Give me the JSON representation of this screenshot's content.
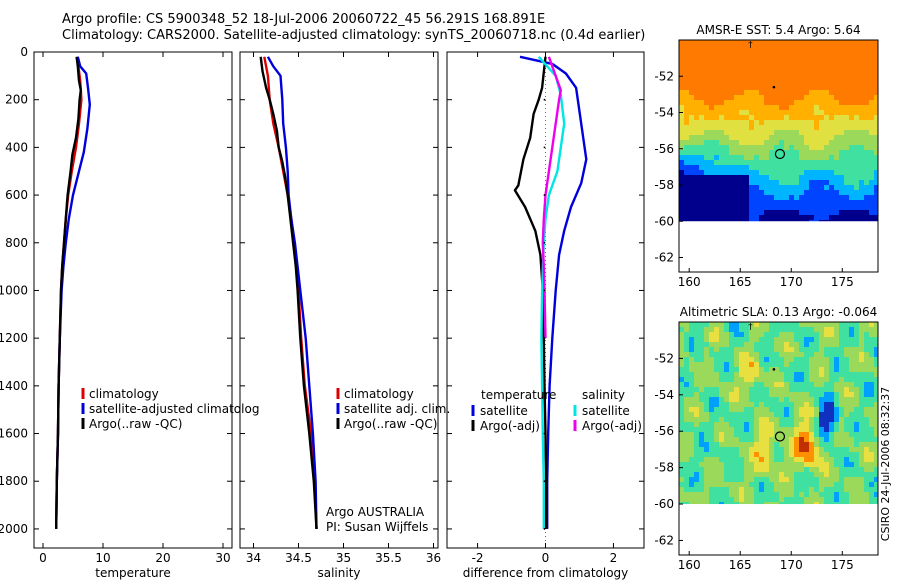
{
  "header": {
    "line1": "Argo profile: CS 5900348_52 18-Jul-2006 20060722_45 56.291S 168.891E",
    "line2": "Climatology: CARS2000. Satellite-adjusted climatology: synTS_20060718.nc (0.4d earlier)"
  },
  "stamp": "CSIRO 24-Jul-2006 08:32:37",
  "colors": {
    "clim": "#dd0000",
    "sat": "#0000dd",
    "argo": "#000000",
    "cyan": "#00e5e5",
    "magenta": "#ee00ee"
  },
  "chart_data": [
    {
      "type": "line",
      "name": "temperature-profile",
      "xlabel": "temperature",
      "xlim": [
        -1.5,
        31.5
      ],
      "ylim": [
        0,
        2080
      ],
      "xticks": [
        "0",
        "10",
        "20",
        "30"
      ],
      "yticks": [
        "0",
        "200",
        "400",
        "600",
        "800",
        "1000",
        "1200",
        "1400",
        "1600",
        "1800",
        "2000"
      ],
      "legend": [
        "climatology",
        "satellite-adjusted climatolog",
        "Argo(..raw -QC)"
      ],
      "series": [
        {
          "key": "clim",
          "points": [
            [
              5.7,
              20
            ],
            [
              5.9,
              60
            ],
            [
              6.2,
              120
            ],
            [
              6.4,
              200
            ],
            [
              6.0,
              300
            ],
            [
              5.5,
              400
            ],
            [
              4.8,
              500
            ],
            [
              4.2,
              600
            ],
            [
              3.8,
              700
            ],
            [
              3.5,
              800
            ],
            [
              3.2,
              900
            ],
            [
              3.0,
              1000
            ],
            [
              2.8,
              1200
            ],
            [
              2.6,
              1400
            ],
            [
              2.5,
              1600
            ],
            [
              2.3,
              1800
            ],
            [
              2.2,
              2000
            ]
          ]
        },
        {
          "key": "sat",
          "points": [
            [
              5.8,
              20
            ],
            [
              6.2,
              60
            ],
            [
              7.2,
              90
            ],
            [
              7.5,
              150
            ],
            [
              7.8,
              220
            ],
            [
              7.4,
              320
            ],
            [
              6.8,
              420
            ],
            [
              6.0,
              500
            ],
            [
              5.0,
              600
            ],
            [
              4.3,
              700
            ],
            [
              3.8,
              800
            ],
            [
              3.4,
              900
            ],
            [
              3.1,
              1000
            ],
            [
              2.8,
              1200
            ],
            [
              2.6,
              1400
            ],
            [
              2.5,
              1600
            ],
            [
              2.3,
              1800
            ],
            [
              2.2,
              2000
            ]
          ]
        },
        {
          "key": "argo",
          "points": [
            [
              5.6,
              20
            ],
            [
              5.8,
              60
            ],
            [
              6.0,
              120
            ],
            [
              6.3,
              160
            ],
            [
              6.1,
              200
            ],
            [
              5.9,
              280
            ],
            [
              5.5,
              360
            ],
            [
              4.9,
              430
            ],
            [
              4.6,
              500
            ],
            [
              4.1,
              600
            ],
            [
              3.8,
              700
            ],
            [
              3.5,
              800
            ],
            [
              3.2,
              900
            ],
            [
              3.0,
              1000
            ],
            [
              2.8,
              1200
            ],
            [
              2.6,
              1400
            ],
            [
              2.5,
              1600
            ],
            [
              2.3,
              1800
            ],
            [
              2.2,
              2000
            ]
          ]
        }
      ]
    },
    {
      "type": "line",
      "name": "salinity-profile",
      "xlabel": "salinity",
      "xlim": [
        33.85,
        36.05
      ],
      "ylim": [
        0,
        2080
      ],
      "xticks": [
        "34",
        "34.5",
        "35",
        "35.5",
        "36"
      ],
      "legend": [
        "climatology",
        "satellite adj. clim.",
        "Argo(..raw -QC)"
      ],
      "annotations": [
        "Argo AUSTRALIA",
        "PI: Susan Wijffels"
      ],
      "series": [
        {
          "key": "clim",
          "points": [
            [
              34.12,
              20
            ],
            [
              34.16,
              100
            ],
            [
              34.18,
              200
            ],
            [
              34.22,
              300
            ],
            [
              34.28,
              400
            ],
            [
              34.33,
              500
            ],
            [
              34.38,
              600
            ],
            [
              34.42,
              700
            ],
            [
              34.45,
              800
            ],
            [
              34.48,
              900
            ],
            [
              34.5,
              1000
            ],
            [
              34.53,
              1200
            ],
            [
              34.57,
              1400
            ],
            [
              34.64,
              1600
            ],
            [
              34.68,
              1800
            ],
            [
              34.7,
              2000
            ]
          ]
        },
        {
          "key": "sat",
          "points": [
            [
              34.16,
              20
            ],
            [
              34.22,
              60
            ],
            [
              34.3,
              100
            ],
            [
              34.32,
              200
            ],
            [
              34.33,
              300
            ],
            [
              34.36,
              400
            ],
            [
              34.38,
              500
            ],
            [
              34.39,
              600
            ],
            [
              34.42,
              700
            ],
            [
              34.46,
              800
            ],
            [
              34.49,
              900
            ],
            [
              34.52,
              1000
            ],
            [
              34.58,
              1200
            ],
            [
              34.62,
              1400
            ],
            [
              34.66,
              1600
            ],
            [
              34.69,
              1800
            ],
            [
              34.7,
              2000
            ]
          ]
        },
        {
          "key": "argo",
          "points": [
            [
              34.08,
              20
            ],
            [
              34.1,
              80
            ],
            [
              34.14,
              150
            ],
            [
              34.18,
              200
            ],
            [
              34.22,
              260
            ],
            [
              34.26,
              330
            ],
            [
              34.28,
              400
            ],
            [
              34.32,
              460
            ],
            [
              34.35,
              520
            ],
            [
              34.38,
              600
            ],
            [
              34.41,
              700
            ],
            [
              34.44,
              800
            ],
            [
              34.47,
              900
            ],
            [
              34.49,
              1000
            ],
            [
              34.52,
              1200
            ],
            [
              34.56,
              1400
            ],
            [
              34.62,
              1600
            ],
            [
              34.67,
              1800
            ],
            [
              34.7,
              2000
            ]
          ]
        }
      ]
    },
    {
      "type": "line",
      "name": "difference-profile",
      "xlabel": "difference from climatology",
      "xlim": [
        -2.9,
        2.9
      ],
      "ylim": [
        0,
        2080
      ],
      "xticks": [
        "-2",
        "0",
        "2"
      ],
      "legend_left_title": "temperature",
      "legend_right_title": "salinity",
      "legend_left": [
        "satellite",
        "Argo(-adj)"
      ],
      "legend_right": [
        "satellite",
        "Argo(-adj)"
      ],
      "series": [
        {
          "key": "sat",
          "points": [
            [
              -0.75,
              20
            ],
            [
              0.2,
              50
            ],
            [
              0.6,
              90
            ],
            [
              0.9,
              150
            ],
            [
              1.0,
              250
            ],
            [
              1.1,
              350
            ],
            [
              1.2,
              450
            ],
            [
              1.05,
              550
            ],
            [
              0.75,
              650
            ],
            [
              0.55,
              750
            ],
            [
              0.4,
              850
            ],
            [
              0.3,
              1000
            ],
            [
              0.2,
              1200
            ],
            [
              0.12,
              1400
            ],
            [
              0.08,
              1600
            ],
            [
              0.05,
              1800
            ],
            [
              0.05,
              2000
            ]
          ]
        },
        {
          "key": "argo",
          "points": [
            [
              0.0,
              20
            ],
            [
              -0.1,
              150
            ],
            [
              -0.2,
              200
            ],
            [
              -0.35,
              260
            ],
            [
              -0.45,
              360
            ],
            [
              -0.65,
              450
            ],
            [
              -0.8,
              560
            ],
            [
              -0.9,
              580
            ],
            [
              -0.6,
              650
            ],
            [
              -0.3,
              750
            ],
            [
              -0.15,
              850
            ],
            [
              -0.08,
              1000
            ],
            [
              -0.05,
              1200
            ],
            [
              -0.03,
              1400
            ],
            [
              0.0,
              1600
            ],
            [
              0.02,
              1800
            ],
            [
              0.02,
              2000
            ]
          ]
        },
        {
          "key": "cyan",
          "points": [
            [
              -0.2,
              20
            ],
            [
              0.3,
              100
            ],
            [
              0.45,
              180
            ],
            [
              0.55,
              300
            ],
            [
              0.45,
              400
            ],
            [
              0.35,
              500
            ],
            [
              0.1,
              600
            ],
            [
              0.0,
              700
            ],
            [
              -0.05,
              800
            ],
            [
              -0.1,
              1000
            ],
            [
              -0.12,
              1200
            ],
            [
              -0.1,
              1400
            ],
            [
              -0.08,
              1600
            ],
            [
              -0.05,
              1800
            ],
            [
              -0.05,
              2000
            ]
          ]
        },
        {
          "key": "magenta",
          "points": [
            [
              0.1,
              20
            ],
            [
              0.25,
              80
            ],
            [
              0.45,
              160
            ],
            [
              0.4,
              200
            ],
            [
              0.3,
              300
            ],
            [
              0.2,
              400
            ],
            [
              0.1,
              500
            ],
            [
              0.0,
              600
            ],
            [
              -0.05,
              700
            ],
            [
              -0.08,
              800
            ],
            [
              -0.05,
              900
            ],
            [
              -0.03,
              1000
            ],
            [
              0.0,
              1200
            ]
          ]
        },
        {
          "key": "dots",
          "points": [
            [
              -0.03,
              200
            ],
            [
              -0.03,
              400
            ],
            [
              -0.03,
              600
            ],
            [
              -0.03,
              800
            ],
            [
              -0.03,
              1000
            ],
            [
              -0.03,
              1200
            ],
            [
              -0.03,
              1400
            ],
            [
              -0.03,
              1600
            ],
            [
              -0.03,
              1800
            ],
            [
              -0.03,
              2000
            ]
          ]
        }
      ]
    },
    {
      "type": "heatmap",
      "name": "sst-map",
      "title": "AMSR-E SST: 5.4 Argo: 5.64",
      "xlim": [
        159,
        178.5
      ],
      "ylim": [
        -62.8,
        -50
      ],
      "xticks": [
        "160",
        "165",
        "170",
        "175"
      ],
      "yticks": [
        "-52",
        "-54",
        "-56",
        "-58",
        "-60",
        "-62"
      ],
      "data_bottom": -60,
      "marker": [
        168.891,
        -56.291
      ],
      "palette": [
        "#00008c",
        "#0044ff",
        "#00b4ff",
        "#40e0a0",
        "#9ad95a",
        "#e0e040",
        "#ffb000",
        "#ff7a00"
      ]
    },
    {
      "type": "heatmap",
      "name": "sla-map",
      "title": "Altimetric SLA: 0.13 Argo: -0.064",
      "xlim": [
        159,
        178.5
      ],
      "ylim": [
        -62.8,
        -50
      ],
      "xticks": [
        "160",
        "165",
        "170",
        "175"
      ],
      "yticks": [
        "-52",
        "-54",
        "-56",
        "-58",
        "-60",
        "-62"
      ],
      "data_bottom": -60,
      "marker": [
        168.891,
        -56.291
      ],
      "palette": [
        "#1030c0",
        "#00a0ff",
        "#40e0a0",
        "#9ad95a",
        "#e8e040",
        "#ff9000",
        "#c03000"
      ]
    }
  ]
}
